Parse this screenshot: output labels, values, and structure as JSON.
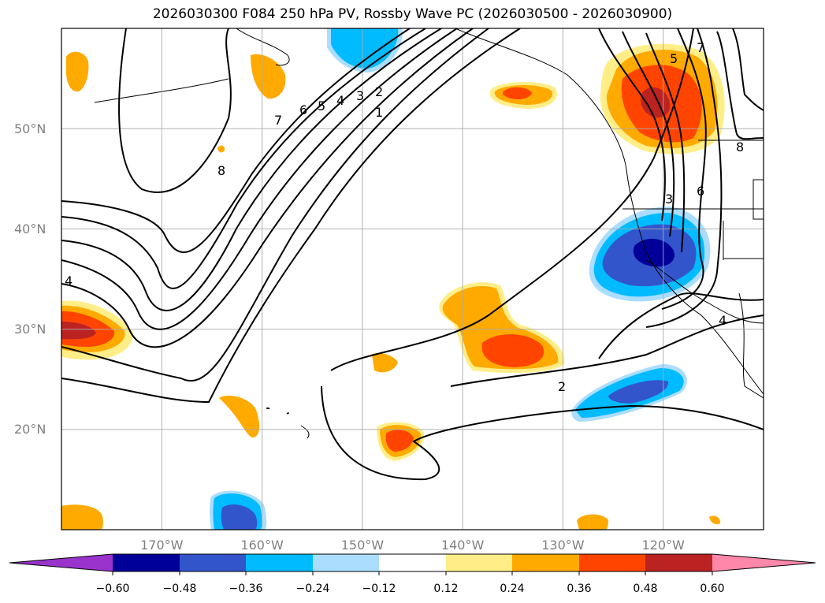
{
  "title": "2026030300 F084 250 hPa PV, Rossby Wave PC (2026030500 - 2026030900)",
  "map": {
    "lon_range": [
      -180,
      -110
    ],
    "lat_range": [
      10,
      60
    ],
    "lat_labels": [
      "20°N",
      "30°N",
      "40°N",
      "50°N"
    ],
    "lat_values": [
      20,
      30,
      40,
      50
    ],
    "lon_labels": [
      "170°W",
      "160°W",
      "150°W",
      "140°W",
      "130°W",
      "120°W"
    ],
    "lon_values": [
      -170,
      -160,
      -150,
      -140,
      -130,
      -120
    ],
    "contour_labels": [
      "8",
      "7",
      "6",
      "5",
      "4",
      "3",
      "2",
      "1",
      "2",
      "3",
      "4",
      "5",
      "6",
      "7",
      "8",
      "4"
    ]
  },
  "colorbar": {
    "ticks": [
      "−0.60",
      "−0.48",
      "−0.36",
      "−0.24",
      "−0.12",
      "0.12",
      "0.24",
      "0.36",
      "0.48",
      "0.60"
    ],
    "colors": [
      "#9933cc",
      "#000099",
      "#3355cc",
      "#00bbff",
      "#aaddff",
      "#ffffff",
      "#ffee88",
      "#ffaa00",
      "#ff4400",
      "#bb2222",
      "#ff88aa"
    ]
  },
  "colors": {
    "dark_red": "#bb2222",
    "red": "#ff4400",
    "orange": "#ffaa00",
    "light_yellow": "#ffee88",
    "navy": "#000099",
    "blue": "#3355cc",
    "cyan": "#00bbff",
    "light_blue": "#aaddff"
  }
}
